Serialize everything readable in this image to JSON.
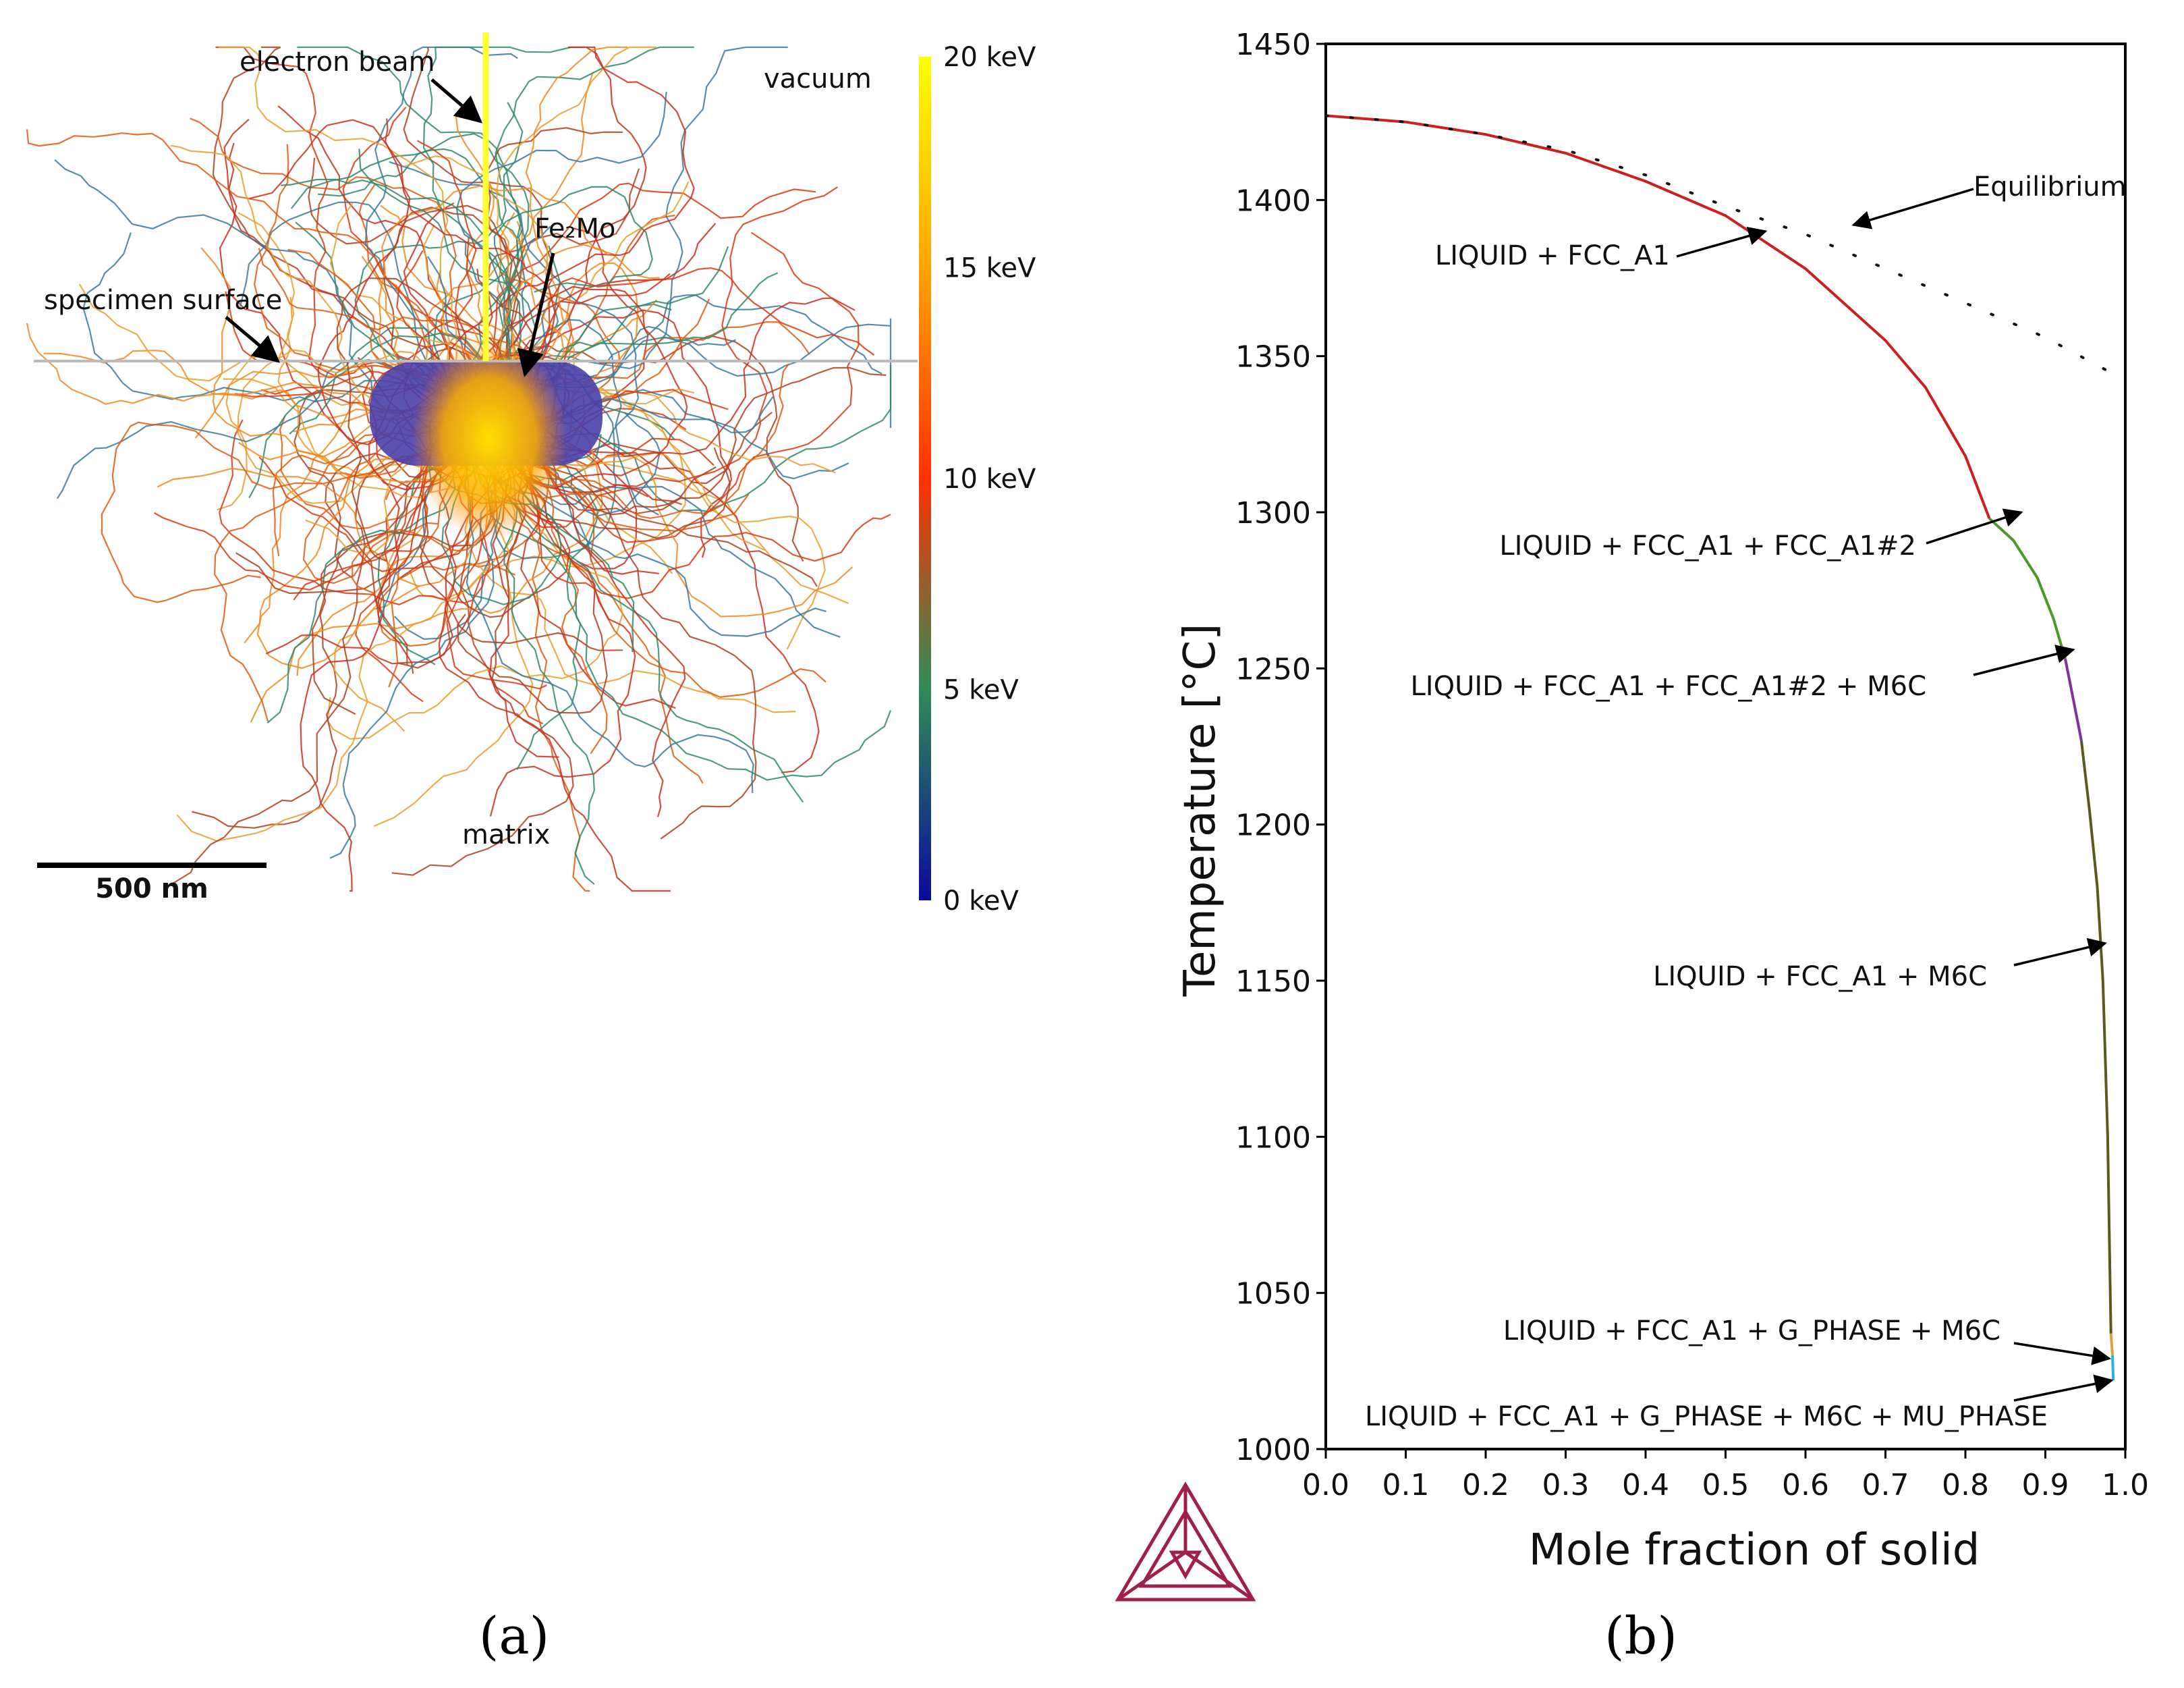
{
  "panel_a": {
    "caption": "(a)",
    "labels": {
      "electron_beam": "electron beam",
      "vacuum": "vacuum",
      "precipitate": "Fe₂Mo",
      "specimen_surface": "specimen surface",
      "matrix": "matrix"
    },
    "scale_bar": "500 nm",
    "colorbar": {
      "ticks": [
        "20 keV",
        "15 keV",
        "10 keV",
        "5 keV",
        "0 keV"
      ],
      "tick_values": [
        20,
        15,
        10,
        5,
        0
      ],
      "stops": [
        "#ffff00",
        "#ffa500",
        "#ff3000",
        "#2e8b57",
        "#0a0a9a"
      ]
    },
    "colors": {
      "surface_line": "#bbbbbb",
      "beam": "#ffff33",
      "precipitate": "#4a3fa8"
    }
  },
  "panel_b": {
    "caption": "(b)",
    "logo": "triangle-logo",
    "colors": {
      "accent": "#a0204c"
    }
  },
  "chart_data": {
    "type": "line",
    "xlabel": "Mole fraction of solid",
    "ylabel": "Temperature [°C]",
    "xlim": [
      0.0,
      1.0
    ],
    "ylim": [
      1000,
      1450
    ],
    "xticks": [
      0.0,
      0.1,
      0.2,
      0.3,
      0.4,
      0.5,
      0.6,
      0.7,
      0.8,
      0.9,
      1.0
    ],
    "xtick_labels": [
      "0.0",
      "0.1",
      "0.2",
      "0.3",
      "0.4",
      "0.5",
      "0.6",
      "0.7",
      "0.8",
      "0.9",
      "1.0"
    ],
    "yticks": [
      1000,
      1050,
      1100,
      1150,
      1200,
      1250,
      1300,
      1350,
      1400,
      1450
    ],
    "ytick_labels": [
      "1000",
      "1050",
      "1100",
      "1150",
      "1200",
      "1250",
      "1300",
      "1350",
      "1400",
      "1450"
    ],
    "series": [
      {
        "name": "LIQUID + FCC_A1",
        "color": "#cc2020",
        "x": [
          0.0,
          0.1,
          0.2,
          0.3,
          0.4,
          0.5,
          0.6,
          0.7,
          0.75,
          0.8,
          0.83
        ],
        "y": [
          1427,
          1425,
          1421,
          1415,
          1406,
          1395,
          1378,
          1355,
          1340,
          1318,
          1298
        ]
      },
      {
        "name": "LIQUID + FCC_A1 + FCC_A1#2",
        "color": "#4a9a2a",
        "x": [
          0.83,
          0.86,
          0.89,
          0.91,
          0.925
        ],
        "y": [
          1298,
          1291,
          1279,
          1266,
          1253
        ]
      },
      {
        "name": "LIQUID + FCC_A1 + FCC_A1#2 + M6C",
        "color": "#8030a0",
        "x": [
          0.925,
          0.935,
          0.945
        ],
        "y": [
          1253,
          1240,
          1227
        ]
      },
      {
        "name": "LIQUID + FCC_A1 + M6C",
        "color": "#5a5a20",
        "x": [
          0.945,
          0.955,
          0.965,
          0.972,
          0.978,
          0.982
        ],
        "y": [
          1227,
          1205,
          1180,
          1150,
          1100,
          1037
        ]
      },
      {
        "name": "LIQUID + FCC_A1 + G_PHASE + M6C",
        "color": "#e0a040",
        "x": [
          0.982,
          0.984
        ],
        "y": [
          1037,
          1030
        ]
      },
      {
        "name": "LIQUID + FCC_A1 + G_PHASE + M6C + MU_PHASE",
        "color": "#30b0e0",
        "x": [
          0.984,
          0.985
        ],
        "y": [
          1030,
          1022
        ]
      },
      {
        "name": "Equilibrium",
        "color": "#111111",
        "style": "dotted",
        "x": [
          0.0,
          0.1,
          0.2,
          0.3,
          0.4,
          0.5,
          0.6,
          0.7,
          0.8,
          0.9,
          0.98
        ],
        "y": [
          1427,
          1425,
          1421,
          1416,
          1408,
          1398,
          1389,
          1378,
          1367,
          1356,
          1345
        ]
      }
    ],
    "annotations": [
      {
        "text": "Equilibrium",
        "points_to": [
          0.66,
          1392
        ]
      },
      {
        "text": "LIQUID + FCC_A1",
        "points_to": [
          0.55,
          1390
        ]
      },
      {
        "text": "LIQUID + FCC_A1 + FCC_A1#2",
        "points_to": [
          0.87,
          1300
        ]
      },
      {
        "text": "LIQUID + FCC_A1 + FCC_A1#2 + M6C",
        "points_to": [
          0.935,
          1256
        ]
      },
      {
        "text": "LIQUID + FCC_A1 + M6C",
        "points_to": [
          0.975,
          1162
        ]
      },
      {
        "text": "LIQUID + FCC_A1 + G_PHASE + M6C",
        "points_to": [
          0.98,
          1029
        ]
      },
      {
        "text": "LIQUID + FCC_A1 + G_PHASE + M6C + MU_PHASE",
        "points_to": [
          0.983,
          1022
        ]
      }
    ]
  }
}
